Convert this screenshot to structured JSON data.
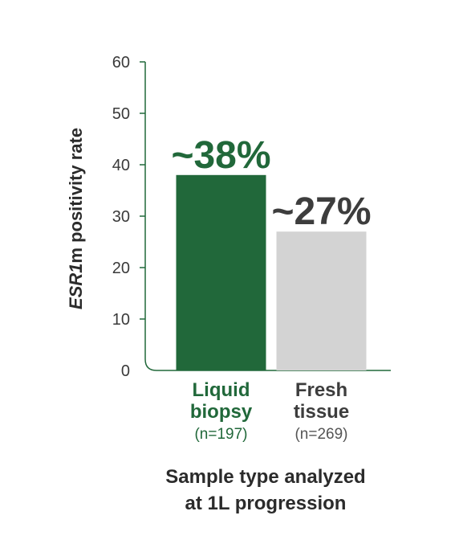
{
  "chart_data": {
    "type": "bar",
    "ylabel_italic": "ESR1",
    "ylabel_rest": "m positivity rate",
    "xlabel_lines": [
      "Sample type analyzed",
      "at 1L progression"
    ],
    "ylim": [
      0,
      60
    ],
    "yticks": [
      "0",
      "10",
      "20",
      "30",
      "40",
      "50",
      "60"
    ],
    "grid": false,
    "categories": [
      {
        "lines": [
          "Liquid",
          "biopsy"
        ],
        "n": "(n=197)"
      },
      {
        "lines": [
          "Fresh",
          "tissue"
        ],
        "n": "(n=269)"
      }
    ],
    "values": [
      38,
      27
    ],
    "data_labels": [
      "~38%",
      "~27%"
    ],
    "colors": {
      "bars": [
        "#21683a",
        "#d3d3d3"
      ],
      "data_labels": [
        "#21683a",
        "#3d3d3d"
      ],
      "category_names": [
        "#21683a",
        "#3d3d3d"
      ],
      "category_n": [
        "#21683a",
        "#555555"
      ],
      "axis": "#21683a"
    }
  }
}
